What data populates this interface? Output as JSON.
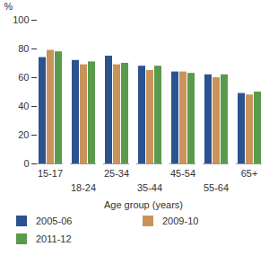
{
  "chart_data": {
    "type": "bar",
    "categories": [
      "15-17",
      "18-24",
      "25-34",
      "35-44",
      "45-54",
      "55-64",
      "65+"
    ],
    "series": [
      {
        "name": "2005-06",
        "color": "#2b5390",
        "values": [
          74,
          72,
          75,
          68,
          64,
          62,
          49
        ]
      },
      {
        "name": "2009-10",
        "color": "#c9935b",
        "values": [
          79,
          69,
          69,
          65,
          64,
          60,
          48
        ]
      },
      {
        "name": "2011-12",
        "color": "#5a9a4c",
        "values": [
          78,
          71,
          70,
          68,
          63,
          62,
          50
        ]
      }
    ],
    "ylabel": "%",
    "xlabel": "Age group (years)",
    "ylim": [
      0,
      100
    ],
    "yticks": [
      0,
      20,
      40,
      60,
      80,
      100
    ],
    "grid": false,
    "legend": "bottom"
  }
}
